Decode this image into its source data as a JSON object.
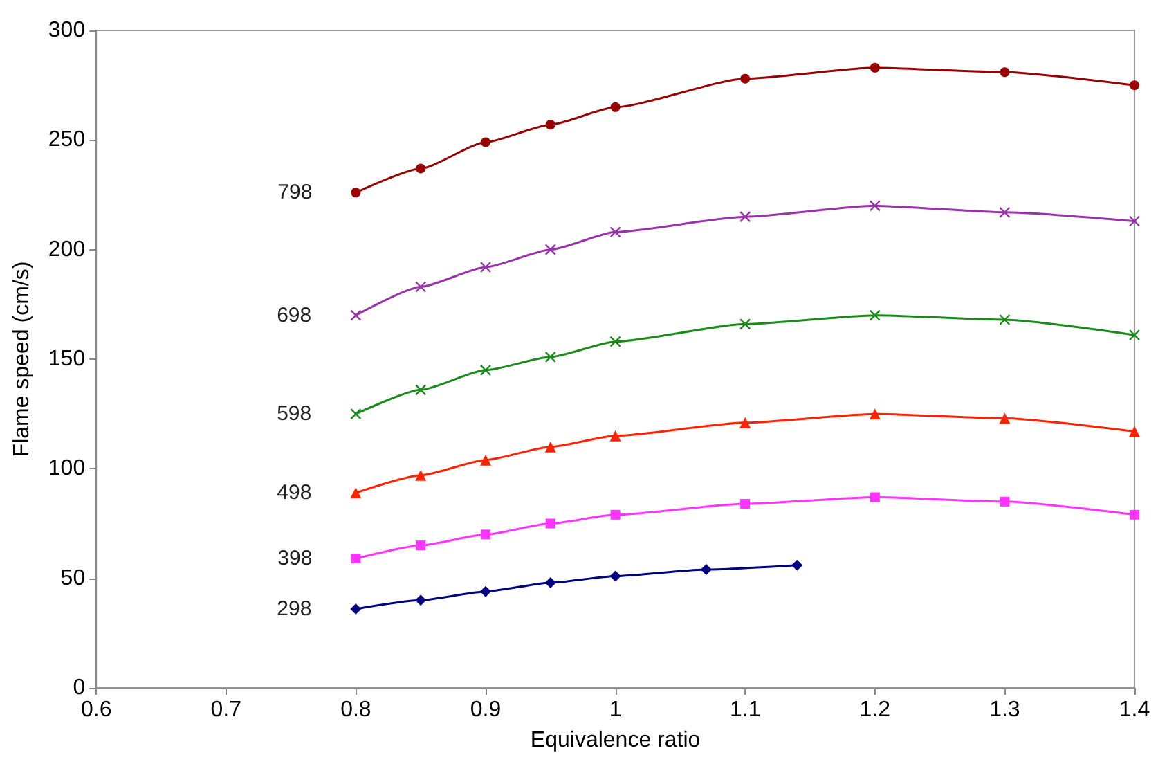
{
  "chart_data": {
    "type": "line",
    "xlabel": "Equivalence ratio",
    "ylabel": "Flame speed (cm/s)",
    "xlim": [
      0.6,
      1.4
    ],
    "xticks": [
      0.6,
      0.7,
      0.8,
      0.9,
      1,
      1.1,
      1.2,
      1.3,
      1.4
    ],
    "ylim": [
      0,
      300
    ],
    "yticks": [
      0,
      50,
      100,
      150,
      200,
      250,
      300
    ],
    "grid": false,
    "legend": false,
    "line_style": "solid",
    "series": [
      {
        "name": "298",
        "color": "#000080",
        "marker": "diamond",
        "x": [
          0.8,
          0.85,
          0.9,
          0.95,
          1.0,
          1.07,
          1.14
        ],
        "values": [
          36,
          40,
          44,
          48,
          51,
          54,
          56
        ]
      },
      {
        "name": "398",
        "color": "#ff33ff",
        "marker": "square",
        "x": [
          0.8,
          0.85,
          0.9,
          0.95,
          1.0,
          1.1,
          1.2,
          1.3,
          1.4
        ],
        "values": [
          59,
          65,
          70,
          75,
          79,
          84,
          87,
          85,
          79
        ]
      },
      {
        "name": "498",
        "color": "#ff2200",
        "marker": "triangle",
        "x": [
          0.8,
          0.85,
          0.9,
          0.95,
          1.0,
          1.1,
          1.2,
          1.3,
          1.4
        ],
        "values": [
          89,
          97,
          104,
          110,
          115,
          121,
          125,
          123,
          117
        ]
      },
      {
        "name": "598",
        "color": "#1a8a1a",
        "marker": "cross",
        "x": [
          0.8,
          0.85,
          0.9,
          0.95,
          1.0,
          1.1,
          1.2,
          1.3,
          1.4
        ],
        "values": [
          125,
          136,
          145,
          151,
          158,
          166,
          170,
          168,
          161
        ]
      },
      {
        "name": "698",
        "color": "#9933aa",
        "marker": "cross",
        "x": [
          0.8,
          0.85,
          0.9,
          0.95,
          1.0,
          1.1,
          1.2,
          1.3,
          1.4
        ],
        "values": [
          170,
          183,
          192,
          200,
          208,
          215,
          220,
          217,
          213
        ]
      },
      {
        "name": "798",
        "color": "#990000",
        "marker": "circle",
        "x": [
          0.8,
          0.85,
          0.9,
          0.95,
          1.0,
          1.1,
          1.2,
          1.3,
          1.4
        ],
        "values": [
          226,
          237,
          249,
          257,
          265,
          278,
          283,
          281,
          275
        ]
      }
    ]
  }
}
